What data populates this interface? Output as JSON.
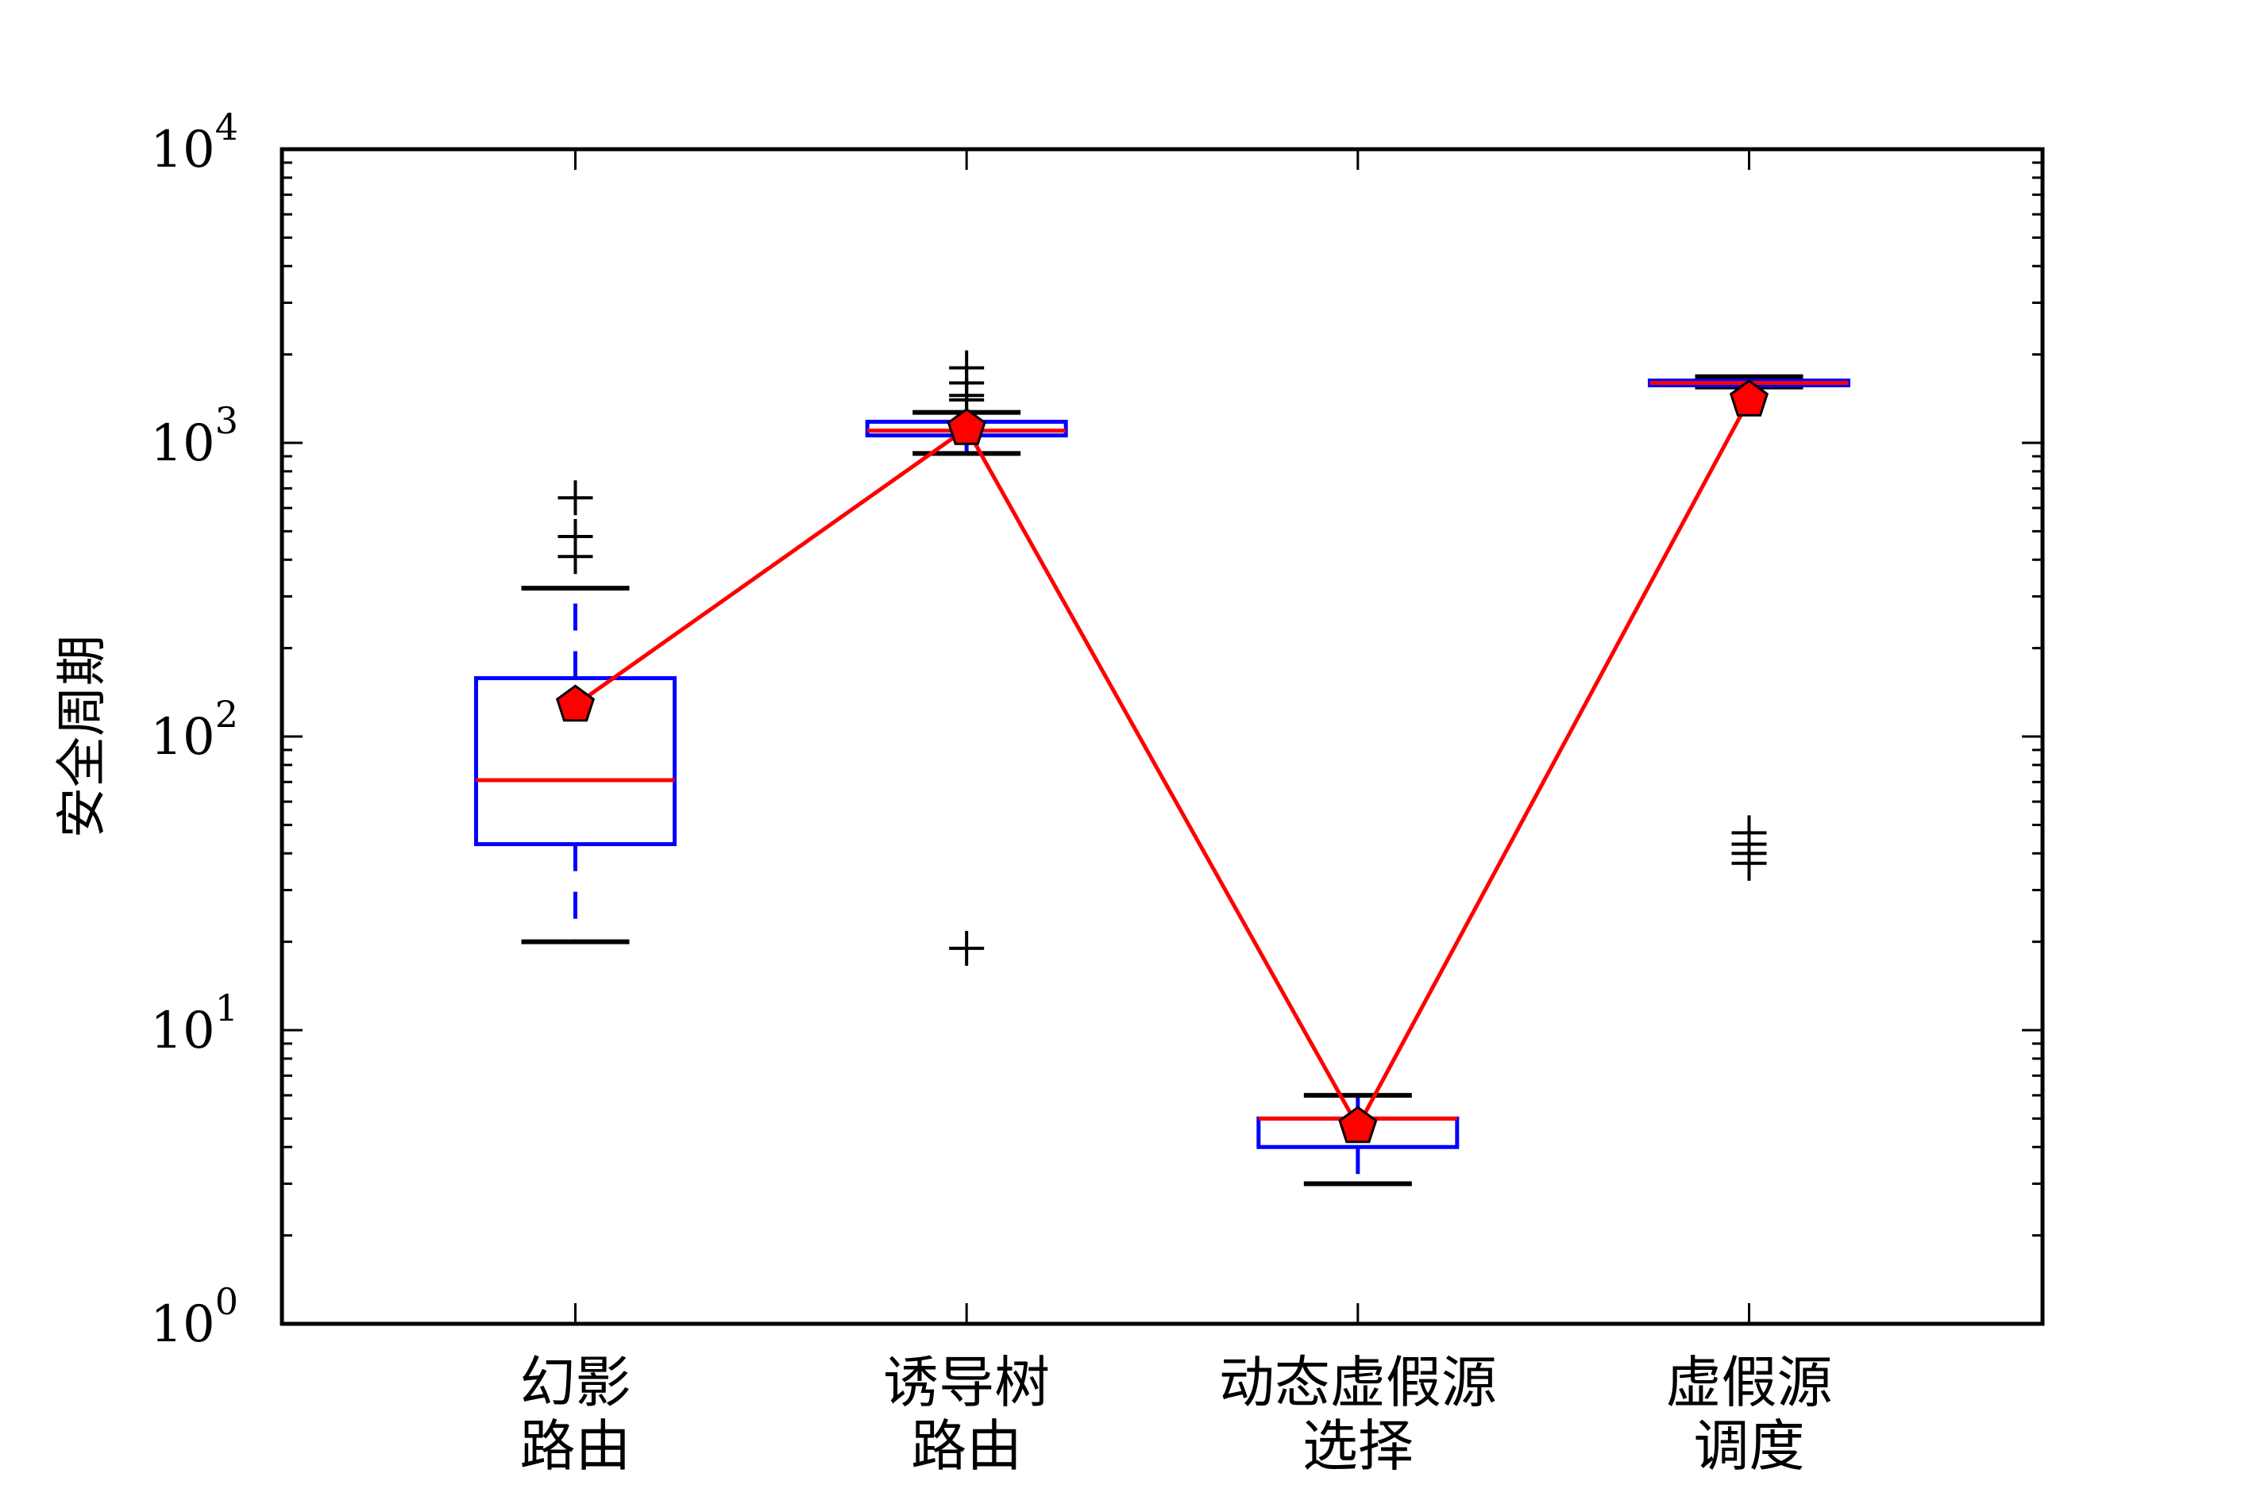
{
  "chart_data": {
    "type": "box",
    "ylabel": "安全周期",
    "yscale": "log",
    "ylim": [
      1,
      10000
    ],
    "ytick_labels": [
      {
        "base": "10",
        "exp": "0"
      },
      {
        "base": "10",
        "exp": "1"
      },
      {
        "base": "10",
        "exp": "2"
      },
      {
        "base": "10",
        "exp": "3"
      },
      {
        "base": "10",
        "exp": "4"
      }
    ],
    "categories": [
      {
        "lines": [
          "幻影",
          "路由"
        ]
      },
      {
        "lines": [
          "诱导树",
          "路由"
        ]
      },
      {
        "lines": [
          "动态虚假源",
          "选择"
        ]
      },
      {
        "lines": [
          "虚假源",
          "调度"
        ]
      }
    ],
    "boxes": [
      {
        "whislo": 20,
        "q1": 43,
        "median": 71,
        "q3": 158,
        "whishi": 320,
        "mean": 128,
        "fliers": [
          410,
          480,
          650
        ]
      },
      {
        "whislo": 920,
        "q1": 1060,
        "median": 1100,
        "q3": 1180,
        "whishi": 1270,
        "mean": 1120,
        "fliers": [
          19,
          1400,
          1450,
          1600,
          1800
        ]
      },
      {
        "whislo": 3,
        "q1": 4,
        "median": 5,
        "q3": 5,
        "whishi": 6,
        "mean": 4.7,
        "fliers": []
      },
      {
        "whislo": 1550,
        "q1": 1570,
        "median": 1600,
        "q3": 1630,
        "whishi": 1680,
        "mean": 1400,
        "fliers": [
          37,
          40,
          43,
          47
        ]
      }
    ],
    "colors": {
      "box": "#0000ff",
      "median": "#ff0000",
      "whisker": "#0000ff",
      "cap": "#000000",
      "flier": "#000000",
      "mean_line": "#ff0000",
      "mean_marker": "#ff0000"
    }
  }
}
